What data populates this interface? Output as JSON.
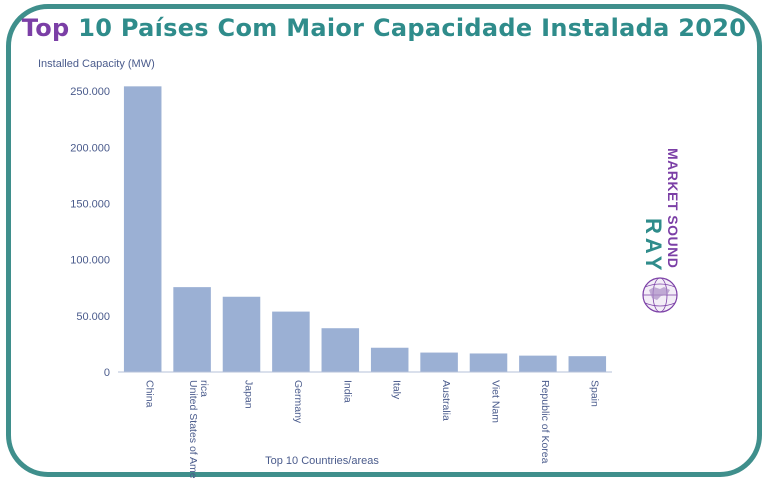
{
  "title_highlight": "Top",
  "title_rest": " 10 Países Com Maior Capacidade Instalada 2020",
  "colors": {
    "frame": "#3f8f8c",
    "title_highlight": "#7b3fa6",
    "title_rest": "#2f8c8b",
    "bar": "#9bb0d4",
    "axis_text": "#4a5b8c"
  },
  "logo": {
    "brand": "RAY",
    "tagline": "MARKET SOUND",
    "icon": "globe-icon"
  },
  "chart_data": {
    "type": "bar",
    "ylabel": "Installed Capacity (MW)",
    "xlabel": "Top 10 Countries/areas",
    "categories": [
      "China",
      "United States of America",
      "Japan",
      "Germany",
      "India",
      "Italy",
      "Australia",
      "Viet Nam",
      "Republic of Korea",
      "Spain"
    ],
    "values": [
      254355,
      75572,
      67000,
      53783,
      38983,
      21600,
      17300,
      16504,
      14575,
      14089
    ],
    "ylim": [
      0,
      260000
    ],
    "yticks": [
      0,
      50000,
      100000,
      150000,
      200000,
      250000
    ],
    "ytick_labels": [
      "0",
      "50.000",
      "100.000",
      "150.000",
      "200.000",
      "250.000"
    ],
    "grid": false,
    "legend": "none"
  }
}
